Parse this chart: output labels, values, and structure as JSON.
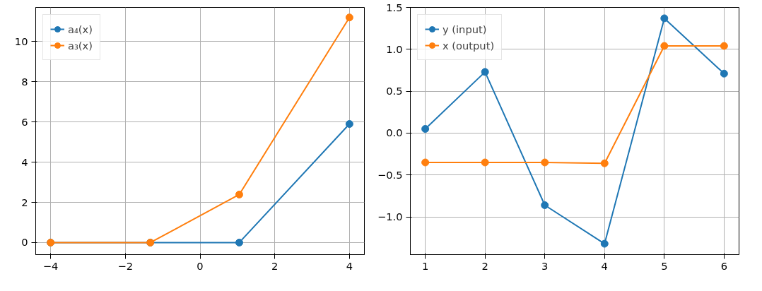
{
  "chart_data": [
    {
      "type": "line",
      "x": [
        -4,
        -1.33,
        1.05,
        4
      ],
      "series": [
        {
          "name": "a₄(x)",
          "color": "#1f77b4",
          "values": [
            0,
            0,
            0,
            5.9
          ]
        },
        {
          "name": "a₃(x)",
          "color": "#ff7f0e",
          "values": [
            0,
            0,
            2.39,
            11.2
          ]
        }
      ],
      "xlim": [
        -4.4,
        4.4
      ],
      "ylim": [
        -0.6,
        11.7
      ],
      "xticks": [
        {
          "value": -4,
          "label": "−4"
        },
        {
          "value": -2,
          "label": "−2"
        },
        0,
        2,
        4
      ],
      "yticks": [
        0,
        2,
        4,
        6,
        8,
        10
      ],
      "grid": true,
      "legend": "top left",
      "marker": "circle"
    },
    {
      "type": "line",
      "x": [
        1,
        2,
        3,
        4,
        5,
        6
      ],
      "series": [
        {
          "name": "y (input)",
          "color": "#1f77b4",
          "values": [
            0.05,
            0.73,
            -0.86,
            -1.32,
            1.37,
            0.71
          ]
        },
        {
          "name": "x (output)",
          "color": "#ff7f0e",
          "values": [
            -0.35,
            -0.35,
            -0.35,
            -0.36,
            1.04,
            1.04
          ]
        }
      ],
      "xlim": [
        0.75,
        6.25
      ],
      "ylim": [
        -1.45,
        1.5
      ],
      "xticks": [
        1,
        2,
        3,
        4,
        5,
        6
      ],
      "yticks": [
        {
          "value": -1,
          "label": "−1.0"
        },
        {
          "value": -0.5,
          "label": "−0.5"
        },
        {
          "value": 0,
          "label": "0.0"
        },
        {
          "value": 0.5,
          "label": "0.5"
        },
        {
          "value": 1,
          "label": "1.0"
        },
        {
          "value": 1.5,
          "label": "1.5"
        }
      ],
      "grid": true,
      "legend": "top left",
      "marker": "circle"
    }
  ]
}
